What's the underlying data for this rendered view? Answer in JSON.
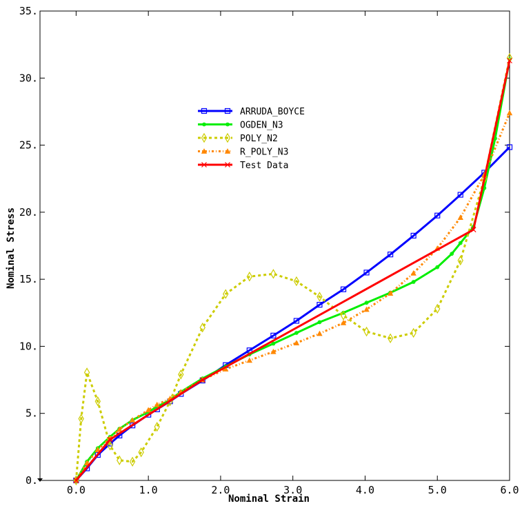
{
  "chart_data": {
    "type": "line",
    "title": "",
    "xlabel": "Nominal Strain",
    "ylabel": "Nominal Stress",
    "xlim": [
      -0.5,
      6.0
    ],
    "ylim": [
      0,
      35
    ],
    "x_ticks": [
      {
        "value": 0,
        "label": "0.0"
      },
      {
        "value": 1,
        "label": "1.0"
      },
      {
        "value": 2,
        "label": "2.0"
      },
      {
        "value": 3,
        "label": "3.0"
      },
      {
        "value": 4,
        "label": "4.0"
      },
      {
        "value": 5,
        "label": "5.0"
      },
      {
        "value": 6,
        "label": "6.0"
      }
    ],
    "y_ticks": [
      {
        "value": 0,
        "label": "0."
      },
      {
        "value": 5,
        "label": "5."
      },
      {
        "value": 10,
        "label": "10."
      },
      {
        "value": 15,
        "label": "15."
      },
      {
        "value": 20,
        "label": "20."
      },
      {
        "value": 25,
        "label": "25."
      },
      {
        "value": 30,
        "label": "30."
      },
      {
        "value": 35,
        "label": "35."
      }
    ],
    "grid": false,
    "legend_position": "upper-center",
    "series": [
      {
        "name": "ARRUDA_BOYCE",
        "color": "#0000ff",
        "dash": "solid",
        "marker": "square",
        "x": [
          0.0,
          0.15,
          0.3,
          0.47,
          0.6,
          0.78,
          1.0,
          1.12,
          1.3,
          1.45,
          1.75,
          2.07,
          2.4,
          2.73,
          3.05,
          3.37,
          3.7,
          4.02,
          4.35,
          4.67,
          5.0,
          5.32,
          5.65,
          6.0
        ],
        "y": [
          0.0,
          0.9,
          1.9,
          2.75,
          3.35,
          4.1,
          4.9,
          5.3,
          5.9,
          6.45,
          7.45,
          8.6,
          9.7,
          10.8,
          11.9,
          13.1,
          14.25,
          15.5,
          16.85,
          18.25,
          19.75,
          21.3,
          22.95,
          24.85
        ]
      },
      {
        "name": "OGDEN_N3",
        "color": "#00ee00",
        "dash": "solid",
        "marker": "circle",
        "x": [
          0.0,
          0.15,
          0.3,
          0.47,
          0.6,
          0.78,
          1.0,
          1.12,
          1.3,
          1.45,
          1.75,
          2.07,
          2.4,
          2.73,
          3.05,
          3.37,
          3.7,
          4.02,
          4.35,
          4.67,
          5.0,
          5.2,
          5.32,
          5.5,
          5.65,
          5.8,
          6.0
        ],
        "y": [
          0.0,
          1.4,
          2.4,
          3.25,
          3.85,
          4.5,
          5.1,
          5.5,
          6.0,
          6.6,
          7.6,
          8.5,
          9.4,
          10.2,
          11.0,
          11.8,
          12.5,
          13.25,
          14.0,
          14.8,
          15.9,
          16.9,
          17.7,
          18.9,
          21.8,
          25.5,
          31.4
        ]
      },
      {
        "name": "POLY_N2",
        "color": "#cccc00",
        "dash": "4,4",
        "marker": "diamond",
        "x": [
          0.0,
          0.07,
          0.15,
          0.3,
          0.47,
          0.6,
          0.78,
          0.9,
          1.12,
          1.3,
          1.45,
          1.75,
          2.07,
          2.4,
          2.73,
          3.05,
          3.37,
          3.7,
          4.02,
          4.35,
          4.67,
          5.0,
          5.32,
          5.65,
          6.0
        ],
        "y": [
          0.0,
          4.6,
          8.05,
          5.9,
          2.6,
          1.5,
          1.4,
          2.1,
          4.0,
          5.9,
          7.9,
          11.4,
          13.9,
          15.2,
          15.4,
          14.85,
          13.7,
          12.3,
          11.1,
          10.6,
          11.0,
          12.8,
          16.4,
          22.5,
          31.5
        ]
      },
      {
        "name": "R_POLY_N3",
        "color": "#ff8800",
        "dash": "3,3,1,3",
        "marker": "triangle",
        "x": [
          0.0,
          0.15,
          0.3,
          0.47,
          0.6,
          0.78,
          1.0,
          1.12,
          1.3,
          1.45,
          1.75,
          2.07,
          2.4,
          2.73,
          3.05,
          3.37,
          3.7,
          4.02,
          4.35,
          4.67,
          5.0,
          5.32,
          5.65,
          6.0
        ],
        "y": [
          0.0,
          1.3,
          2.3,
          3.15,
          3.8,
          4.5,
          5.25,
          5.65,
          6.1,
          6.6,
          7.5,
          8.3,
          8.95,
          9.6,
          10.25,
          10.95,
          11.75,
          12.75,
          13.95,
          15.45,
          17.3,
          19.6,
          22.8,
          27.4
        ]
      },
      {
        "name": "Test Data",
        "color": "#ff0000",
        "dash": "solid",
        "marker": "x",
        "x": [
          0.0,
          0.47,
          1.75,
          5.5,
          6.0
        ],
        "y": [
          0.0,
          3.05,
          7.5,
          18.7,
          31.3
        ]
      }
    ]
  }
}
